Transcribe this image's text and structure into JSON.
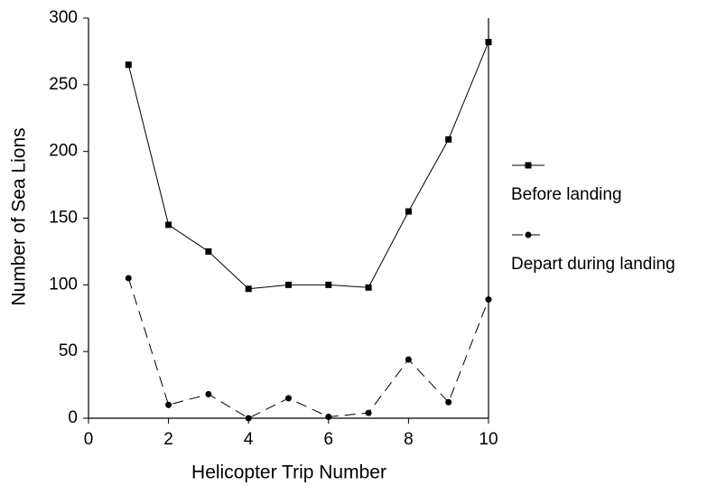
{
  "chart_data": {
    "type": "line",
    "xlabel": "Helicopter Trip Number",
    "ylabel": "Number of Sea Lions",
    "xlim": [
      0,
      10
    ],
    "xticks": [
      0,
      2,
      4,
      6,
      8,
      10
    ],
    "ylim": [
      0,
      300
    ],
    "yticks": [
      0,
      50,
      100,
      150,
      200,
      250,
      300
    ],
    "grid": false,
    "legend": "right",
    "x": [
      1,
      2,
      3,
      4,
      5,
      6,
      7,
      8,
      9,
      10
    ],
    "series": [
      {
        "name": "Before landing",
        "color": "#000000",
        "line_style": "solid",
        "marker": "square",
        "values": [
          265,
          145,
          125,
          97,
          100,
          100,
          98,
          155,
          209,
          282
        ]
      },
      {
        "name": "Depart during landing",
        "color": "#000000",
        "line_style": "dashed",
        "marker": "circle",
        "values": [
          105,
          10,
          18,
          0,
          15,
          1,
          4,
          44,
          12,
          89
        ]
      }
    ]
  }
}
